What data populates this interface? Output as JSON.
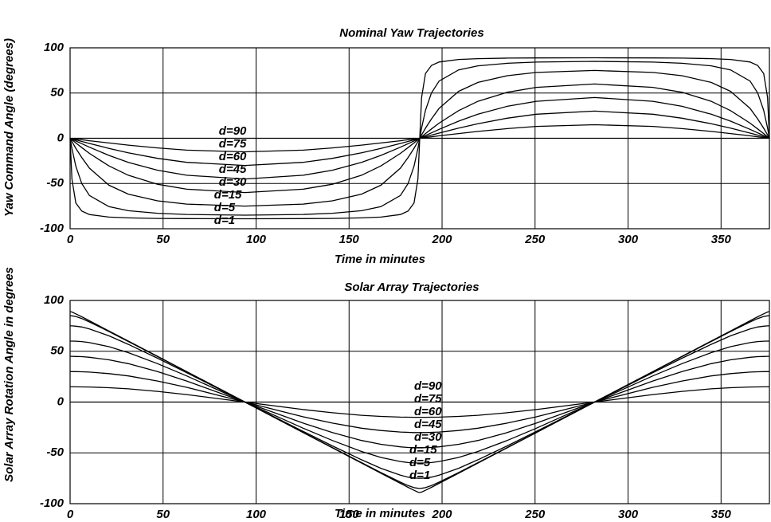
{
  "chart_data": [
    {
      "type": "line",
      "title": "Nominal Yaw Trajectories",
      "xlabel": "Time in minutes",
      "ylabel": "Yaw Command Angle (degrees)",
      "x": [
        0,
        1.0,
        3.1,
        6.3,
        10.4,
        20.9,
        31.3,
        47.0,
        62.7,
        94.0,
        125.3,
        141.0,
        156.7,
        167.1,
        177.6,
        181.7,
        184.9,
        187.0,
        188.0,
        189.0,
        191.1,
        194.3,
        198.4,
        208.9,
        219.3,
        235.0,
        250.7,
        282.0,
        313.3,
        329.0,
        344.7,
        355.1,
        365.6,
        369.7,
        372.9,
        375.0,
        376.0
      ],
      "xlim": [
        0,
        376
      ],
      "ylim": [
        -100,
        100
      ],
      "xticks": [
        0,
        50,
        100,
        150,
        200,
        250,
        300,
        350
      ],
      "yticks": [
        -100,
        -50,
        0,
        50,
        100
      ],
      "grid": true,
      "series": [
        {
          "name": "d=90",
          "color": "#000000",
          "values": [
            0,
            0,
            0,
            0,
            0,
            0,
            0,
            0,
            0,
            0,
            0,
            0,
            0,
            0,
            0,
            0,
            0,
            0,
            0,
            0,
            0,
            0,
            0,
            0,
            0,
            0,
            0,
            0,
            0,
            0,
            0,
            0,
            0,
            0,
            0,
            0,
            0
          ]
        },
        {
          "name": "d=75",
          "color": "#000000",
          "values": [
            0,
            -0.3,
            -0.8,
            -1.6,
            -2.7,
            -5.2,
            -7.6,
            -10.7,
            -13.1,
            -15.0,
            -13.1,
            -10.7,
            -7.6,
            -5.2,
            -2.7,
            -1.6,
            -0.8,
            -0.3,
            0,
            0.3,
            0.8,
            1.6,
            2.7,
            5.2,
            7.6,
            10.7,
            13.1,
            15.0,
            13.1,
            10.7,
            7.6,
            5.2,
            2.7,
            1.6,
            0.8,
            0.3,
            0
          ]
        },
        {
          "name": "d=60",
          "color": "#000000",
          "values": [
            0,
            -0.6,
            -1.7,
            -3.5,
            -5.7,
            -11.2,
            -16.1,
            -22.2,
            -26.6,
            -30.0,
            -26.6,
            -22.2,
            -16.1,
            -11.2,
            -5.7,
            -3.5,
            -1.7,
            -0.6,
            0,
            0.6,
            1.7,
            3.5,
            5.7,
            11.2,
            16.1,
            22.2,
            26.6,
            30.0,
            26.6,
            22.2,
            16.1,
            11.2,
            5.7,
            3.5,
            1.7,
            0.6,
            0
          ]
        },
        {
          "name": "d=45",
          "color": "#000000",
          "values": [
            0,
            -1.0,
            -3.0,
            -6.0,
            -9.9,
            -18.9,
            -26.6,
            -35.3,
            -40.9,
            -45.0,
            -40.9,
            -35.3,
            -26.6,
            -18.9,
            -9.9,
            -6.0,
            -3.0,
            -1.0,
            0,
            1.0,
            3.0,
            6.0,
            9.9,
            18.9,
            26.6,
            35.3,
            40.9,
            45.0,
            40.9,
            35.3,
            26.6,
            18.9,
            9.9,
            6.0,
            3.0,
            1.0,
            0
          ]
        },
        {
          "name": "d=30",
          "color": "#000000",
          "values": [
            0,
            -1.7,
            -5.2,
            -10.3,
            -16.7,
            -30.6,
            -40.9,
            -50.8,
            -56.3,
            -60.0,
            -56.3,
            -50.8,
            -40.9,
            -30.6,
            -16.7,
            -10.3,
            -5.2,
            -1.7,
            0,
            1.7,
            5.2,
            10.3,
            16.7,
            30.6,
            40.9,
            50.8,
            56.3,
            60.0,
            56.3,
            50.8,
            40.9,
            30.6,
            16.7,
            10.3,
            5.2,
            1.7,
            0
          ]
        },
        {
          "name": "d=15",
          "color": "#000000",
          "values": [
            0,
            -3.7,
            -11.1,
            -21.3,
            -33.0,
            -51.9,
            -61.8,
            -69.2,
            -72.8,
            -75.0,
            -72.8,
            -69.2,
            -61.8,
            -51.9,
            -33.0,
            -21.3,
            -11.1,
            -3.7,
            0,
            3.7,
            11.1,
            21.3,
            33.0,
            51.9,
            61.8,
            69.2,
            72.8,
            75.0,
            72.8,
            69.2,
            61.8,
            51.9,
            33.0,
            21.3,
            11.1,
            3.7,
            0
          ]
        },
        {
          "name": "d=5",
          "color": "#000000",
          "values": [
            0,
            -11.3,
            -30.9,
            -50.1,
            -63.3,
            -75.6,
            -80.1,
            -82.9,
            -84.2,
            -85.0,
            -84.2,
            -82.9,
            -80.1,
            -75.6,
            -63.3,
            -50.1,
            -30.9,
            -11.3,
            0,
            11.3,
            30.9,
            50.1,
            63.3,
            75.6,
            80.1,
            82.9,
            84.2,
            85.0,
            84.2,
            82.9,
            80.1,
            75.6,
            63.3,
            50.1,
            30.9,
            11.3,
            0
          ]
        },
        {
          "name": "d=1",
          "color": "#000000",
          "values": [
            0,
            -45.0,
            -71.6,
            -80.5,
            -84.3,
            -87.1,
            -88.0,
            -88.6,
            -88.8,
            -89.0,
            -88.8,
            -88.6,
            -88.0,
            -87.1,
            -84.3,
            -80.5,
            -71.6,
            -45.0,
            0,
            45.0,
            71.6,
            80.5,
            84.3,
            87.1,
            88.0,
            88.6,
            88.8,
            89.0,
            88.8,
            88.6,
            88.0,
            87.1,
            84.3,
            80.5,
            71.6,
            45.0,
            0
          ]
        }
      ]
    },
    {
      "type": "line",
      "title": "Solar Array Trajectories",
      "xlabel": "Time in minutes",
      "ylabel": "Solar Array Rotation Angle in degrees",
      "x": [
        0,
        1.0,
        3.1,
        6.3,
        10.4,
        20.9,
        31.3,
        47.0,
        62.7,
        94.0,
        125.3,
        141.0,
        156.7,
        167.1,
        177.6,
        181.7,
        184.9,
        187.0,
        188.0,
        189.0,
        191.1,
        194.3,
        198.4,
        208.9,
        219.3,
        235.0,
        250.7,
        282.0,
        313.3,
        329.0,
        344.7,
        355.1,
        365.6,
        369.7,
        372.9,
        375.0,
        376.0
      ],
      "xlim": [
        0,
        376
      ],
      "ylim": [
        -100,
        100
      ],
      "xticks": [
        0,
        50,
        100,
        150,
        200,
        250,
        300,
        350
      ],
      "yticks": [
        -100,
        -50,
        0,
        50,
        100
      ],
      "grid": true,
      "series": [
        {
          "name": "d=90",
          "color": "#000000",
          "values": [
            0,
            0,
            0,
            0,
            0,
            0,
            0,
            0,
            0,
            0,
            0,
            0,
            0,
            0,
            0,
            0,
            0,
            0,
            0,
            0,
            0,
            0,
            0,
            0,
            0,
            0,
            0,
            0,
            0,
            0,
            0,
            0,
            0,
            0,
            0,
            0,
            0
          ]
        },
        {
          "name": "d=75",
          "color": "#000000",
          "values": [
            15.0,
            15.0,
            15.0,
            14.9,
            14.8,
            14.1,
            13.0,
            10.5,
            7.4,
            0,
            -7.4,
            -10.5,
            -13.0,
            -14.1,
            -14.8,
            -14.9,
            -15.0,
            -15.0,
            -15.0,
            -15.0,
            -15.0,
            -14.9,
            -14.8,
            -14.1,
            -13.0,
            -10.5,
            -7.4,
            0,
            7.4,
            10.5,
            13.0,
            14.1,
            14.8,
            14.9,
            15.0,
            15.0,
            15.0
          ]
        },
        {
          "name": "d=60",
          "color": "#000000",
          "values": [
            30.0,
            30.0,
            30.0,
            29.8,
            29.5,
            28.0,
            25.7,
            20.7,
            14.5,
            0,
            -14.5,
            -20.7,
            -25.7,
            -28.0,
            -29.5,
            -29.8,
            -30.0,
            -30.0,
            -30.0,
            -30.0,
            -30.0,
            -29.8,
            -29.5,
            -28.0,
            -25.7,
            -20.7,
            -14.5,
            0,
            14.5,
            20.7,
            25.7,
            28.0,
            29.5,
            29.8,
            30.0,
            30.0,
            30.0
          ]
        },
        {
          "name": "d=45",
          "color": "#000000",
          "values": [
            45.0,
            45.0,
            44.9,
            44.7,
            44.1,
            41.6,
            37.8,
            30.0,
            20.7,
            0,
            -20.7,
            -30.0,
            -37.8,
            -41.6,
            -44.1,
            -44.7,
            -44.9,
            -45.0,
            -45.0,
            -45.0,
            -44.9,
            -44.7,
            -44.1,
            -41.6,
            -37.8,
            -30.0,
            -20.7,
            0,
            20.7,
            30.0,
            37.8,
            41.6,
            44.1,
            44.7,
            44.9,
            45.0,
            45.0
          ]
        },
        {
          "name": "d=30",
          "color": "#000000",
          "values": [
            60.0,
            60.0,
            59.9,
            59.5,
            58.5,
            54.5,
            48.6,
            37.8,
            25.7,
            0,
            -25.7,
            -37.8,
            -48.6,
            -54.5,
            -58.5,
            -59.5,
            -59.9,
            -60.0,
            -60.0,
            -60.0,
            -59.9,
            -59.5,
            -58.5,
            -54.5,
            -48.6,
            -37.8,
            -25.7,
            0,
            25.7,
            37.8,
            48.6,
            54.5,
            58.5,
            59.5,
            59.9,
            60.0,
            60.0
          ]
        },
        {
          "name": "d=15",
          "color": "#000000",
          "values": [
            75.0,
            75.0,
            74.7,
            73.9,
            72.0,
            65.2,
            56.8,
            43.1,
            28.9,
            0,
            -28.9,
            -43.1,
            -56.8,
            -65.2,
            -72.0,
            -73.9,
            -74.7,
            -75.0,
            -75.0,
            -75.0,
            -74.7,
            -73.9,
            -72.0,
            -65.2,
            -56.8,
            -43.1,
            -28.9,
            0,
            28.9,
            43.1,
            56.8,
            65.2,
            72.0,
            73.9,
            74.7,
            75.0,
            75.0
          ]
        },
        {
          "name": "d=5",
          "color": "#000000",
          "values": [
            85.0,
            84.9,
            84.2,
            82.2,
            78.8,
            69.4,
            59.6,
            44.8,
            29.9,
            0,
            -29.9,
            -44.8,
            -59.6,
            -69.4,
            -78.8,
            -82.2,
            -84.2,
            -84.9,
            -85.0,
            -84.9,
            -84.2,
            -82.2,
            -78.8,
            -69.4,
            -59.6,
            -44.8,
            -29.9,
            0,
            29.9,
            44.8,
            59.6,
            69.4,
            78.8,
            82.2,
            84.2,
            84.9,
            85.0
          ]
        },
        {
          "name": "d=1",
          "color": "#000000",
          "values": [
            89.0,
            88.6,
            86.8,
            83.9,
            80.0,
            70.0,
            60.0,
            45.0,
            30.0,
            0,
            -30.0,
            -45.0,
            -60.0,
            -70.0,
            -80.0,
            -83.9,
            -86.8,
            -88.6,
            -89.0,
            -88.6,
            -86.8,
            -83.9,
            -80.0,
            -70.0,
            -60.0,
            -45.0,
            -30.0,
            0,
            30.0,
            45.0,
            60.0,
            70.0,
            80.0,
            83.9,
            86.8,
            88.6,
            89.0
          ]
        }
      ]
    }
  ]
}
